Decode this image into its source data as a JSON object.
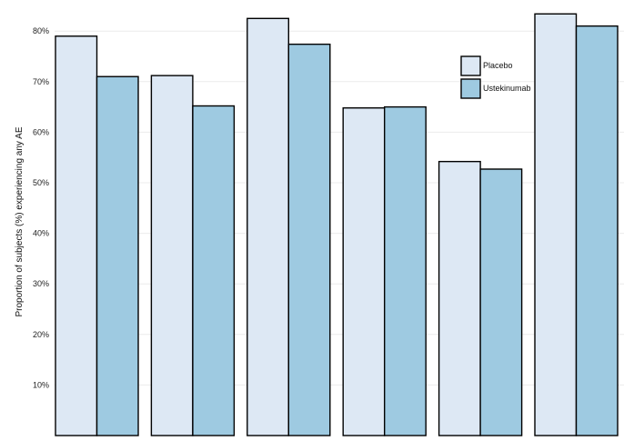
{
  "chart_data": {
    "type": "bar",
    "title": "",
    "xlabel": "",
    "ylabel": "Proportion of subjects (%) experiencing any AE",
    "ylim": [
      0,
      85
    ],
    "yticks": [
      10,
      20,
      30,
      40,
      50,
      60,
      70,
      80
    ],
    "ytick_labels": [
      "10%",
      "20%",
      "30%",
      "40%",
      "50%",
      "60%",
      "70%",
      "80%"
    ],
    "grid": true,
    "legend": "top-right",
    "categories": [
      "",
      "",
      "",
      "",
      "",
      ""
    ],
    "series": [
      {
        "name": "Placebo",
        "color": "#dde8f4",
        "values": [
          79,
          71.2,
          82.5,
          64.8,
          54.2,
          83.4
        ]
      },
      {
        "name": "Ustekinumab",
        "color": "#9ecae1",
        "values": [
          71,
          65.2,
          77.4,
          65,
          52.7,
          81
        ]
      }
    ]
  }
}
